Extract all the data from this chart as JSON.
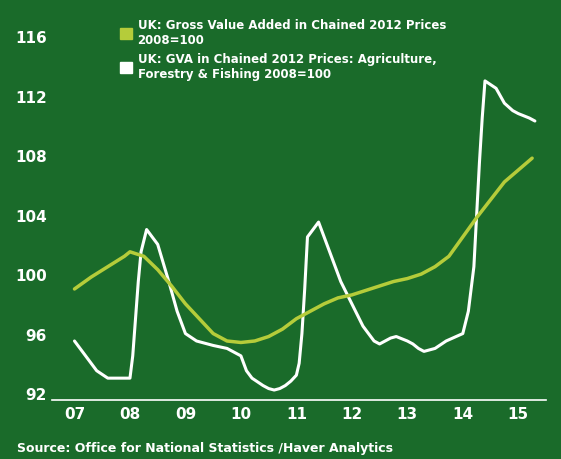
{
  "background_color": "#1a6b2a",
  "source_text": "Source: Office for National Statistics /Haver Analytics",
  "ylabel_ticks": [
    92,
    96,
    100,
    104,
    108,
    112,
    116
  ],
  "xlim": [
    2006.6,
    2015.5
  ],
  "ylim": [
    91.5,
    117.5
  ],
  "xtick_labels": [
    "07",
    "08",
    "09",
    "10",
    "11",
    "12",
    "13",
    "14",
    "15"
  ],
  "xtick_positions": [
    2007,
    2008,
    2009,
    2010,
    2011,
    2012,
    2013,
    2014,
    2015
  ],
  "line1_color": "#b5cc3a",
  "line1_label": "UK: Gross Value Added in Chained 2012 Prices\n2008=100",
  "line2_color": "#ffffff",
  "line2_label": "UK: GVA in Chained 2012 Prices: Agriculture,\nForestry & Fishing 2008=100",
  "line1_x": [
    2007.0,
    2007.3,
    2007.6,
    2007.9,
    2008.0,
    2008.25,
    2008.5,
    2008.75,
    2009.0,
    2009.25,
    2009.5,
    2009.75,
    2010.0,
    2010.25,
    2010.5,
    2010.75,
    2011.0,
    2011.25,
    2011.5,
    2011.75,
    2012.0,
    2012.25,
    2012.5,
    2012.75,
    2013.0,
    2013.25,
    2013.5,
    2013.75,
    2014.0,
    2014.25,
    2014.5,
    2014.75,
    2015.0,
    2015.25
  ],
  "line1_y": [
    99.0,
    99.8,
    100.5,
    101.2,
    101.5,
    101.2,
    100.3,
    99.2,
    98.0,
    97.0,
    96.0,
    95.5,
    95.4,
    95.5,
    95.8,
    96.3,
    97.0,
    97.5,
    98.0,
    98.4,
    98.6,
    98.9,
    99.2,
    99.5,
    99.7,
    100.0,
    100.5,
    101.2,
    102.5,
    103.8,
    105.0,
    106.2,
    107.0,
    107.8
  ],
  "line2_x": [
    2007.0,
    2007.1,
    2007.2,
    2007.4,
    2007.6,
    2007.8,
    2008.0,
    2008.05,
    2008.1,
    2008.15,
    2008.2,
    2008.3,
    2008.5,
    2008.7,
    2008.85,
    2009.0,
    2009.2,
    2009.5,
    2009.75,
    2010.0,
    2010.1,
    2010.2,
    2010.4,
    2010.5,
    2010.6,
    2010.7,
    2010.8,
    2010.9,
    2011.0,
    2011.05,
    2011.1,
    2011.15,
    2011.2,
    2011.4,
    2011.6,
    2011.8,
    2012.0,
    2012.2,
    2012.4,
    2012.5,
    2012.6,
    2012.7,
    2012.8,
    2013.0,
    2013.1,
    2013.2,
    2013.3,
    2013.5,
    2013.7,
    2014.0,
    2014.1,
    2014.2,
    2014.25,
    2014.3,
    2014.35,
    2014.4,
    2014.6,
    2014.75,
    2014.9,
    2015.0,
    2015.2,
    2015.3
  ],
  "line2_y": [
    95.5,
    95.0,
    94.5,
    93.5,
    93.0,
    93.0,
    93.0,
    94.5,
    97.0,
    99.5,
    101.5,
    103.0,
    102.0,
    99.5,
    97.5,
    96.0,
    95.5,
    95.2,
    95.0,
    94.5,
    93.5,
    93.0,
    92.5,
    92.3,
    92.2,
    92.3,
    92.5,
    92.8,
    93.2,
    94.0,
    96.0,
    99.0,
    102.5,
    103.5,
    101.5,
    99.5,
    98.0,
    96.5,
    95.5,
    95.3,
    95.5,
    95.7,
    95.8,
    95.5,
    95.3,
    95.0,
    94.8,
    95.0,
    95.5,
    96.0,
    97.5,
    100.5,
    104.0,
    107.5,
    110.5,
    113.0,
    112.5,
    111.5,
    111.0,
    110.8,
    110.5,
    110.3
  ]
}
